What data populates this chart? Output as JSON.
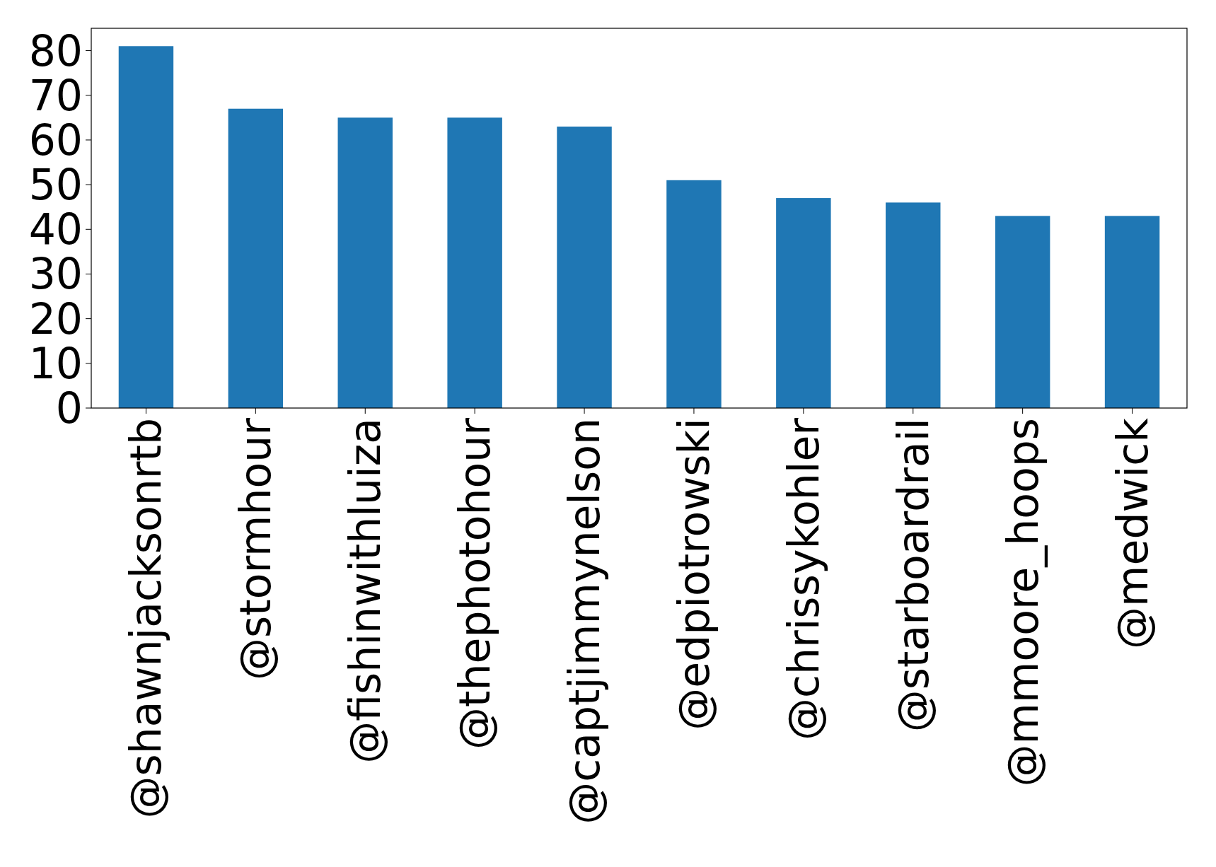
{
  "chart_data": {
    "type": "bar",
    "categories": [
      "@shawnjacksonrtb",
      "@stormhour",
      "@fishinwithluiza",
      "@thephotohour",
      "@captjimmynelson",
      "@edpiotrowski",
      "@chrissykohler",
      "@starboardrail",
      "@mmoore_hoops",
      "@medwick"
    ],
    "values": [
      81,
      67,
      65,
      65,
      63,
      51,
      47,
      46,
      43,
      43
    ],
    "color": "#1f77b4",
    "ylim": [
      0,
      85
    ],
    "yticks": [
      0,
      10,
      20,
      30,
      40,
      50,
      60,
      70,
      80
    ],
    "grid": false
  }
}
